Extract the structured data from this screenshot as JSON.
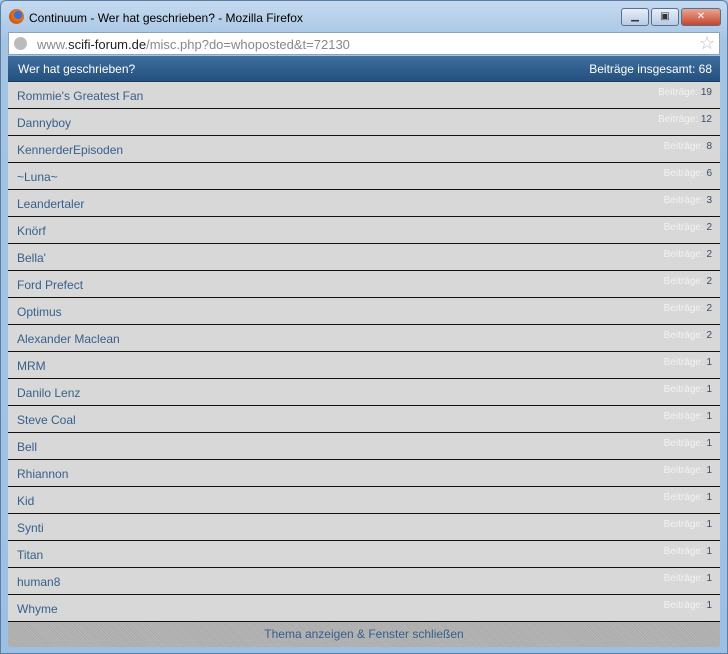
{
  "window": {
    "title": "Continuum - Wer hat geschrieben? - Mozilla Firefox",
    "url_prefix": "www.",
    "url_domain": "scifi-forum.de",
    "url_path": "/misc.php?do=whoposted&t=72130"
  },
  "header": {
    "title": "Wer hat geschrieben?",
    "total": "Beiträge insgesamt: 68"
  },
  "count_label": "Beiträge: ",
  "posters": [
    {
      "name": "Rommie's Greatest Fan",
      "count": "19"
    },
    {
      "name": "Dannyboy",
      "count": "12"
    },
    {
      "name": "KennerderEpisoden",
      "count": "8"
    },
    {
      "name": "~Luna~",
      "count": "6"
    },
    {
      "name": "Leandertaler",
      "count": "3"
    },
    {
      "name": "Knörf",
      "count": "2"
    },
    {
      "name": "Bella'",
      "count": "2"
    },
    {
      "name": "Ford Prefect",
      "count": "2"
    },
    {
      "name": "Optimus",
      "count": "2"
    },
    {
      "name": "Alexander Maclean",
      "count": "2"
    },
    {
      "name": "MRM",
      "count": "1"
    },
    {
      "name": "Danilo Lenz",
      "count": "1"
    },
    {
      "name": "Steve Coal",
      "count": "1"
    },
    {
      "name": "Bell",
      "count": "1"
    },
    {
      "name": "Rhiannon",
      "count": "1"
    },
    {
      "name": "Kid",
      "count": "1"
    },
    {
      "name": "Synti",
      "count": "1"
    },
    {
      "name": "Titan",
      "count": "1"
    },
    {
      "name": "human8",
      "count": "1"
    },
    {
      "name": "Whyme",
      "count": "1"
    }
  ],
  "footer": {
    "link": "Thema anzeigen & Fenster schließen"
  }
}
